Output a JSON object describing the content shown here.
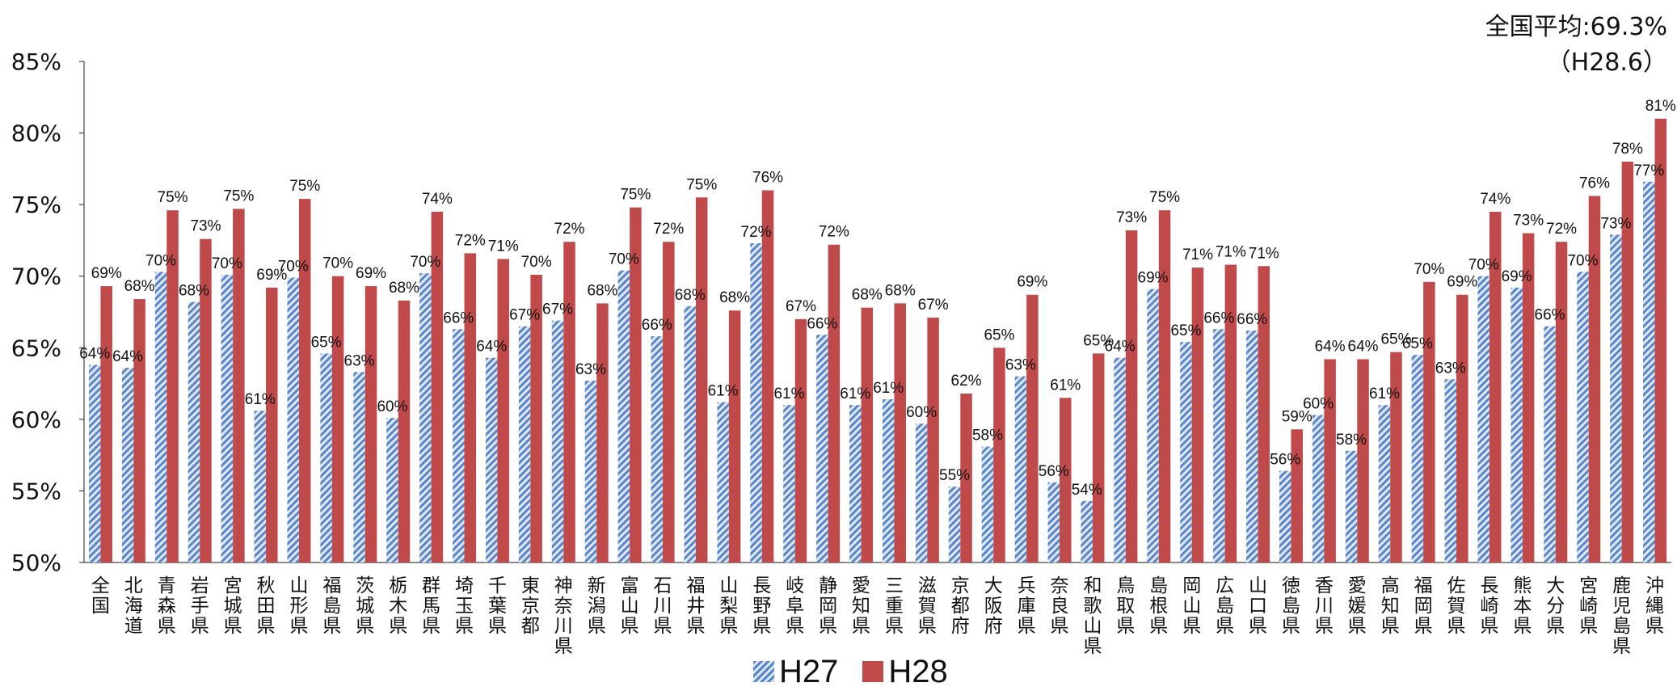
{
  "annotation": {
    "line1": "全国平均:69.3%",
    "line2": "（H28.6）"
  },
  "legend": {
    "h27": "H27",
    "h28": "H28"
  },
  "chart_data": {
    "type": "bar",
    "categories": [
      "全国",
      "北海道",
      "青森県",
      "岩手県",
      "宮城県",
      "秋田県",
      "山形県",
      "福島県",
      "茨城県",
      "栃木県",
      "群馬県",
      "埼玉県",
      "千葉県",
      "東京都",
      "神奈川県",
      "新潟県",
      "富山県",
      "石川県",
      "福井県",
      "山梨県",
      "長野県",
      "岐阜県",
      "静岡県",
      "愛知県",
      "三重県",
      "滋賀県",
      "京都府",
      "大阪府",
      "兵庫県",
      "奈良県",
      "和歌山県",
      "鳥取県",
      "島根県",
      "岡山県",
      "広島県",
      "山口県",
      "徳島県",
      "香川県",
      "愛媛県",
      "高知県",
      "福岡県",
      "佐賀県",
      "長崎県",
      "熊本県",
      "大分県",
      "宮崎県",
      "鹿児島県",
      "沖縄県"
    ],
    "series": [
      {
        "name": "H27",
        "color": "#5a86c8",
        "pattern": "diagonal-hatch",
        "values": [
          63.8,
          63.6,
          70.3,
          68.2,
          70.1,
          60.6,
          69.9,
          64.6,
          63.3,
          60.1,
          70.2,
          66.3,
          64.3,
          66.5,
          66.9,
          62.7,
          70.4,
          65.8,
          67.9,
          61.2,
          72.3,
          61.0,
          65.9,
          61.0,
          61.4,
          59.7,
          55.3,
          58.1,
          63.0,
          55.6,
          54.3,
          64.3,
          69.1,
          65.4,
          66.3,
          66.2,
          56.4,
          60.3,
          57.8,
          61.0,
          64.5,
          62.8,
          70.0,
          69.2,
          66.5,
          70.3,
          72.9,
          76.6
        ],
        "labels": [
          "64%",
          "64%",
          "70%",
          "68%",
          "70%",
          "61%",
          "70%",
          "65%",
          "63%",
          "60%",
          "70%",
          "66%",
          "64%",
          "67%",
          "67%",
          "63%",
          "70%",
          "66%",
          "68%",
          "61%",
          "72%",
          "61%",
          "66%",
          "61%",
          "61%",
          "60%",
          "55%",
          "58%",
          "63%",
          "56%",
          "54%",
          "64%",
          "69%",
          "65%",
          "66%",
          "66%",
          "56%",
          "60%",
          "58%",
          "61%",
          "65%",
          "63%",
          "70%",
          "69%",
          "66%",
          "70%",
          "73%",
          "77%"
        ]
      },
      {
        "name": "H28",
        "color": "#c0494a",
        "values": [
          69.3,
          68.4,
          74.6,
          72.6,
          74.7,
          69.2,
          75.4,
          70.0,
          69.3,
          68.3,
          74.5,
          71.6,
          71.2,
          70.1,
          72.4,
          68.1,
          74.8,
          72.4,
          75.5,
          67.6,
          76.0,
          67.0,
          72.2,
          67.8,
          68.1,
          67.1,
          61.8,
          65.0,
          68.7,
          61.5,
          64.6,
          73.2,
          74.6,
          70.6,
          70.8,
          70.7,
          59.3,
          64.2,
          64.2,
          64.7,
          69.6,
          68.7,
          74.5,
          73.0,
          72.4,
          75.6,
          78.0,
          81.0
        ],
        "labels": [
          "69%",
          "68%",
          "75%",
          "73%",
          "75%",
          "69%",
          "75%",
          "70%",
          "69%",
          "68%",
          "74%",
          "72%",
          "71%",
          "70%",
          "72%",
          "68%",
          "75%",
          "72%",
          "75%",
          "68%",
          "76%",
          "67%",
          "72%",
          "68%",
          "68%",
          "67%",
          "62%",
          "65%",
          "69%",
          "61%",
          "65%",
          "73%",
          "75%",
          "71%",
          "71%",
          "71%",
          "59%",
          "64%",
          "64%",
          "65%",
          "70%",
          "69%",
          "74%",
          "73%",
          "72%",
          "76%",
          "78%",
          "81%"
        ]
      }
    ],
    "ylim": [
      50,
      85
    ],
    "yticks": [
      "50%",
      "55%",
      "60%",
      "65%",
      "70%",
      "75%",
      "80%",
      "85%"
    ],
    "grid": false,
    "legend_position": "bottom"
  }
}
